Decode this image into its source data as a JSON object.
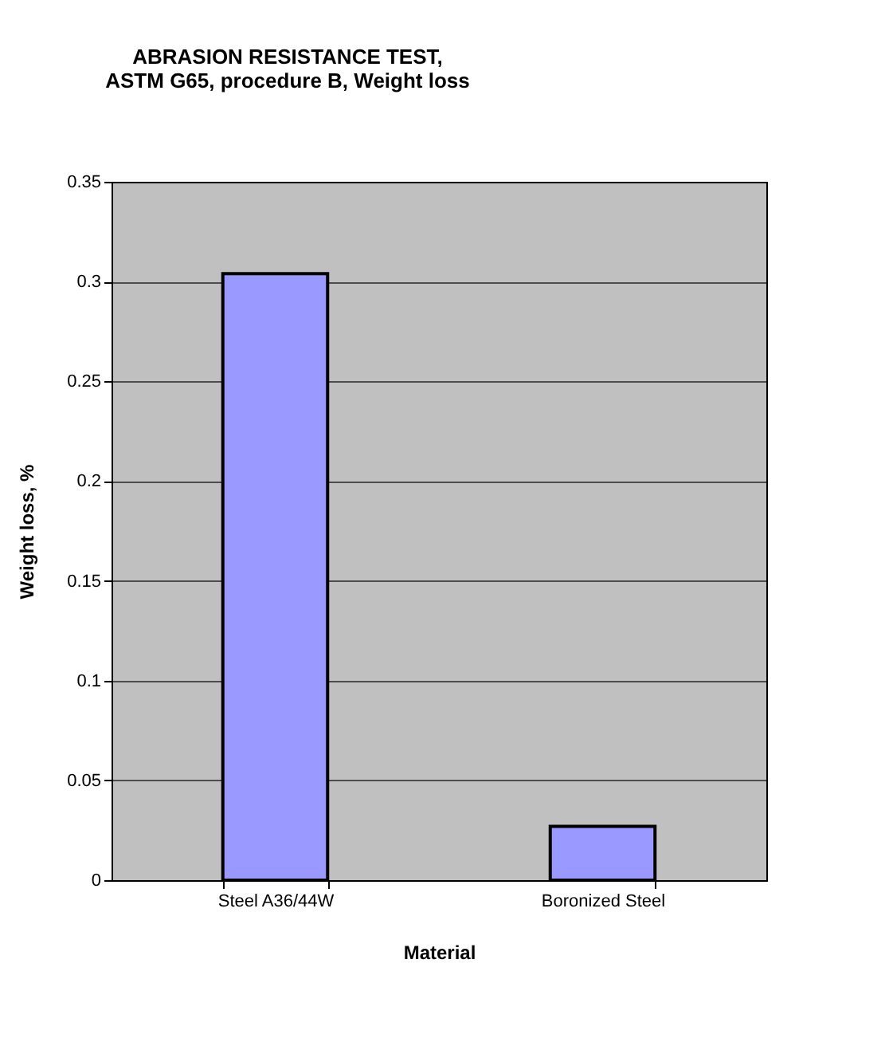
{
  "chart_data": {
    "type": "bar",
    "title": [
      "ABRASION RESISTANCE TEST,",
      "ASTM G65, procedure B, Weight loss"
    ],
    "xlabel": "Material",
    "ylabel": "Weight loss, %",
    "categories": [
      "Steel A36/44W",
      "Boronized Steel"
    ],
    "values": [
      0.304,
      0.027
    ],
    "color": "#9999ff",
    "ylim": [
      0,
      0.35
    ],
    "yticks": [
      0,
      0.05,
      0.1,
      0.15,
      0.2,
      0.25,
      0.3,
      0.35
    ],
    "grid": "y"
  }
}
